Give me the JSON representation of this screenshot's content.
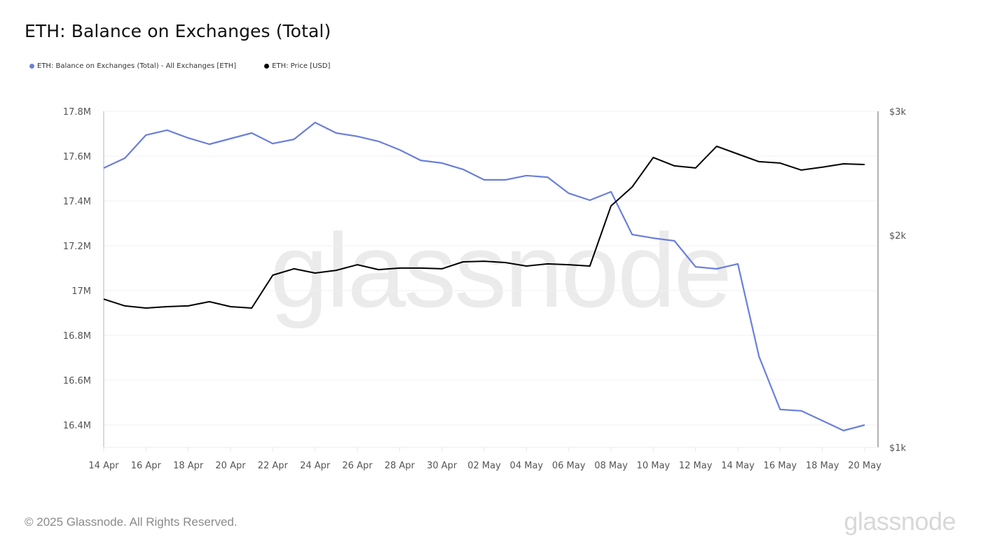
{
  "header": {
    "title": "ETH: Balance on Exchanges (Total)"
  },
  "legend": [
    {
      "label": "ETH: Balance on Exchanges (Total) - All Exchanges [ETH]",
      "color": "#6a7fdb"
    },
    {
      "label": "ETH: Price [USD]",
      "color": "#000000"
    }
  ],
  "footer": {
    "copyright": "© 2025 Glassnode. All Rights Reserved.",
    "brand": "glassnode"
  },
  "watermark": "glassnode",
  "chart_data": {
    "type": "line",
    "title": "ETH: Balance on Exchanges (Total)",
    "xlabel": "",
    "ylabel": "",
    "x": [
      "14 Apr",
      "15 Apr",
      "16 Apr",
      "17 Apr",
      "18 Apr",
      "19 Apr",
      "20 Apr",
      "21 Apr",
      "22 Apr",
      "23 Apr",
      "24 Apr",
      "25 Apr",
      "26 Apr",
      "27 Apr",
      "28 Apr",
      "29 Apr",
      "30 Apr",
      "01 May",
      "02 May",
      "03 May",
      "04 May",
      "05 May",
      "06 May",
      "07 May",
      "08 May",
      "09 May",
      "10 May",
      "11 May",
      "12 May",
      "13 May",
      "14 May",
      "15 May",
      "16 May",
      "17 May",
      "18 May",
      "19 May",
      "20 May"
    ],
    "x_tick_labels": [
      "14 Apr",
      "16 Apr",
      "18 Apr",
      "20 Apr",
      "22 Apr",
      "24 Apr",
      "26 Apr",
      "28 Apr",
      "30 Apr",
      "02 May",
      "04 May",
      "06 May",
      "08 May",
      "10 May",
      "12 May",
      "14 May",
      "16 May",
      "18 May",
      "20 May"
    ],
    "series": [
      {
        "name": "ETH: Balance on Exchanges (Total) - All Exchanges [ETH]",
        "axis": "left",
        "color": "#6a7fdb",
        "values": [
          17.547,
          17.591,
          17.694,
          17.716,
          17.681,
          17.653,
          17.678,
          17.703,
          17.656,
          17.675,
          17.75,
          17.703,
          17.688,
          17.666,
          17.628,
          17.581,
          17.569,
          17.541,
          17.494,
          17.494,
          17.513,
          17.506,
          17.434,
          17.403,
          17.441,
          17.25,
          17.234,
          17.222,
          17.106,
          17.097,
          17.119,
          16.706,
          16.469,
          16.463,
          16.419,
          16.375,
          16.4
        ],
        "unit": "M ETH"
      },
      {
        "name": "ETH: Price [USD]",
        "axis": "right",
        "color": "#000000",
        "values": [
          1624,
          1588,
          1577,
          1584,
          1588,
          1610,
          1584,
          1577,
          1756,
          1793,
          1768,
          1784,
          1817,
          1788,
          1797,
          1797,
          1793,
          1834,
          1838,
          1830,
          1809,
          1822,
          1817,
          1809,
          2202,
          2343,
          2580,
          2510,
          2493,
          2676,
          2609,
          2545,
          2533,
          2476,
          2499,
          2527,
          2521
        ],
        "unit": "USD"
      }
    ],
    "left_axis": {
      "ticks": [
        "16.4M",
        "16.6M",
        "16.8M",
        "17M",
        "17.2M",
        "17.4M",
        "17.6M",
        "17.8M"
      ],
      "tick_values": [
        16.4,
        16.6,
        16.8,
        17.0,
        17.2,
        17.4,
        17.6,
        17.8
      ],
      "range": [
        16.3,
        17.8
      ],
      "scale": "linear"
    },
    "right_axis": {
      "ticks": [
        "$1k",
        "$2k",
        "$3k"
      ],
      "tick_values": [
        1000,
        2000,
        3000
      ],
      "range": [
        1000,
        3000
      ],
      "scale": "log"
    },
    "grid": true,
    "legend_position": "top-left"
  }
}
